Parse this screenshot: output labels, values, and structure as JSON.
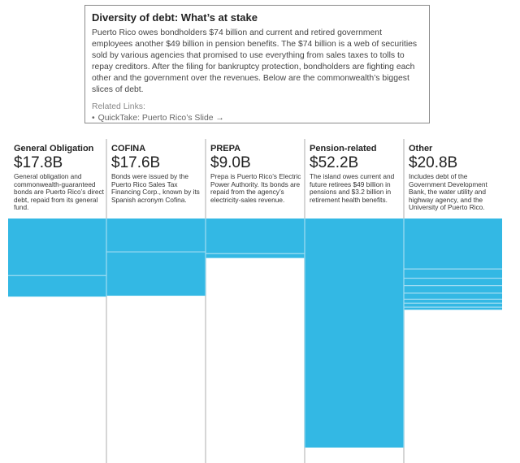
{
  "infobox": {
    "title": "Diversity of debt: What’s at stake",
    "body": "Puerto Rico owes bondholders $74 billion and current and retired government employees another $49 billion in pension benefits. The $74 billion is a web of securities sold by various agencies that promised to use everything from sales taxes to tolls to repay creditors. After the filing for bankruptcy protection, bondholders are fighting each other and the government over the revenues. Below are the commonwealth’s biggest slices of debt.",
    "related_label": "Related Links:",
    "related_links": [
      {
        "bullet": "•",
        "label": "QuickTake: Puerto Rico’s Slide",
        "arrow": "→"
      }
    ]
  },
  "chart_data": {
    "type": "bar",
    "title": "Diversity of debt: What’s at stake",
    "unit": "billion USD",
    "bar_color": "#33b8e4",
    "divider_color": "#d6d6d6",
    "categories": [
      "General Obligation",
      "COFINA",
      "PREPA",
      "Pension-related",
      "Other"
    ],
    "values": [
      17.8,
      17.6,
      9.0,
      52.2,
      20.8
    ],
    "value_labels": [
      "$17.8B",
      "$17.6B",
      "$9.0B",
      "$52.2B",
      "$20.8B"
    ],
    "descriptions": [
      "General obligation and commonwealth-guaranteed bonds are Puerto Rico’s direct debt, repaid from its general fund.",
      "Bonds were issued by the Puerto Rico Sales Tax Financing Corp., known by its Spanish acronym Cofina.",
      "Prepa is Puerto Rico’s Electric Power Authority. Its bonds are repaid from the agency’s electricity-sales revenue.",
      "The island owes current and future retirees $49 billion in pensions and $3.2 billion in retirement health benefits.",
      "Includes debt of the Government Development Bank, the water utility and highway agency, and the University of Puerto Rico."
    ],
    "segments": [
      [
        13.0,
        4.8
      ],
      [
        7.6,
        10.0
      ],
      [
        8.0,
        1.0
      ],
      [
        52.2
      ],
      [
        11.5,
        2.1,
        1.7,
        1.7,
        1.4,
        0.9,
        0.9,
        0.6
      ]
    ]
  }
}
